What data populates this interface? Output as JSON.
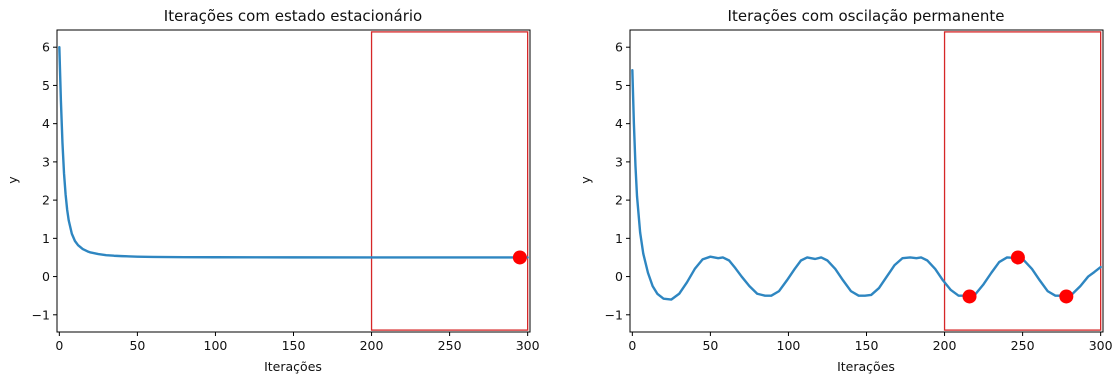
{
  "chart_data": [
    {
      "type": "line",
      "title": "Iterações com estado estacionário",
      "xlabel": "Iterações",
      "ylabel": "y",
      "xlim": [
        -1.5,
        301.5
      ],
      "ylim": [
        -1.45,
        6.45
      ],
      "xticks": [
        0,
        50,
        100,
        150,
        200,
        250,
        300
      ],
      "yticks": [
        -1,
        0,
        1,
        2,
        3,
        4,
        5,
        6
      ],
      "grid": false,
      "line_color": "#2e86c1",
      "highlight_box": {
        "x": [
          200,
          300
        ],
        "y": [
          -1.4,
          6.4
        ],
        "color": "#d62728"
      },
      "marker_color": "#ff0000",
      "series": [
        {
          "x": [
            0,
            1,
            2,
            3,
            4,
            5,
            6,
            8,
            10,
            12,
            15,
            18,
            20,
            25,
            30,
            35,
            40,
            50,
            60,
            80,
            100,
            150,
            200,
            250,
            300
          ],
          "values": [
            6.0,
            4.6,
            3.5,
            2.7,
            2.15,
            1.75,
            1.47,
            1.12,
            0.93,
            0.82,
            0.72,
            0.66,
            0.63,
            0.59,
            0.56,
            0.545,
            0.535,
            0.52,
            0.513,
            0.507,
            0.505,
            0.502,
            0.501,
            0.5,
            0.5
          ]
        }
      ],
      "markers": [
        {
          "x": 295,
          "y": 0.5
        }
      ]
    },
    {
      "type": "line",
      "title": "Iterações com oscilação permanente",
      "xlabel": "Iterações",
      "ylabel": "y",
      "xlim": [
        -1.5,
        301.5
      ],
      "ylim": [
        -1.45,
        6.45
      ],
      "xticks": [
        0,
        50,
        100,
        150,
        200,
        250,
        300
      ],
      "yticks": [
        -1,
        0,
        1,
        2,
        3,
        4,
        5,
        6
      ],
      "grid": false,
      "line_color": "#2e86c1",
      "highlight_box": {
        "x": [
          200,
          300
        ],
        "y": [
          -1.4,
          6.4
        ],
        "color": "#d62728"
      },
      "marker_color": "#ff0000",
      "series": [
        {
          "x": [
            0,
            1,
            2,
            3,
            5,
            7,
            10,
            13,
            16,
            20,
            25,
            30,
            35,
            40,
            45,
            50,
            55,
            58,
            62,
            66,
            70,
            75,
            80,
            85,
            89,
            94,
            99,
            104,
            108,
            112,
            117,
            121,
            125,
            130,
            135,
            140,
            145,
            149,
            153,
            158,
            163,
            168,
            173,
            178,
            182,
            185,
            189,
            194,
            199,
            204,
            209,
            213,
            216,
            220,
            225,
            230,
            235,
            240,
            244,
            247,
            251,
            256,
            261,
            266,
            271,
            275,
            278,
            282,
            287,
            292,
            296,
            300
          ],
          "values": [
            5.4,
            4.0,
            2.9,
            2.1,
            1.15,
            0.6,
            0.1,
            -0.25,
            -0.45,
            -0.58,
            -0.6,
            -0.45,
            -0.15,
            0.2,
            0.45,
            0.52,
            0.48,
            0.5,
            0.42,
            0.22,
            0.0,
            -0.25,
            -0.45,
            -0.5,
            -0.5,
            -0.38,
            -0.1,
            0.2,
            0.42,
            0.5,
            0.46,
            0.5,
            0.42,
            0.2,
            -0.1,
            -0.38,
            -0.5,
            -0.5,
            -0.48,
            -0.3,
            0.0,
            0.3,
            0.48,
            0.5,
            0.48,
            0.5,
            0.42,
            0.2,
            -0.1,
            -0.35,
            -0.5,
            -0.5,
            -0.52,
            -0.45,
            -0.2,
            0.1,
            0.38,
            0.5,
            0.49,
            0.5,
            0.42,
            0.2,
            -0.1,
            -0.38,
            -0.5,
            -0.5,
            -0.52,
            -0.45,
            -0.25,
            0.0,
            0.12,
            0.25
          ]
        }
      ],
      "markers": [
        {
          "x": 216,
          "y": -0.52
        },
        {
          "x": 247,
          "y": 0.5
        },
        {
          "x": 278,
          "y": -0.52
        }
      ]
    }
  ]
}
